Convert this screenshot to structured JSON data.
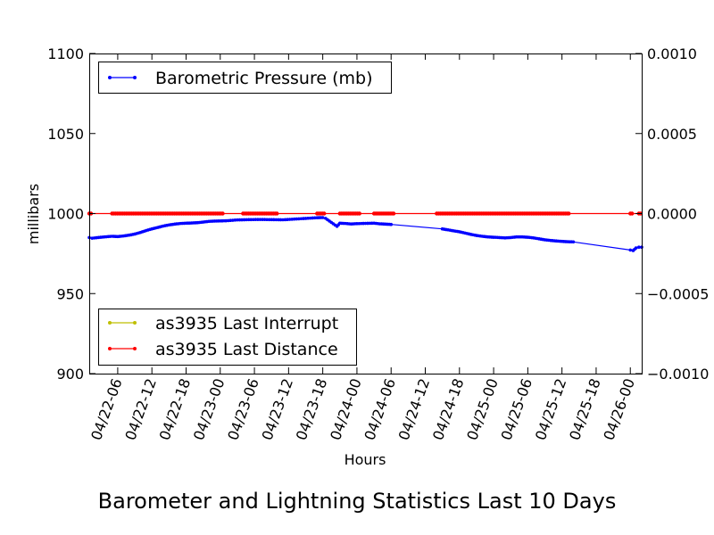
{
  "chart_data": {
    "type": "line",
    "title": "Barometer and Lightning Statistics Last 10 Days",
    "xlabel": "Hours",
    "ylabel": "millibars",
    "x_tick_labels": [
      "04/22-06",
      "04/22-12",
      "04/22-18",
      "04/23-00",
      "04/23-06",
      "04/23-12",
      "04/23-18",
      "04/24-00",
      "04/24-06",
      "04/24-12",
      "04/24-18",
      "04/25-00",
      "04/25-06",
      "04/25-12",
      "04/25-18",
      "04/26-00"
    ],
    "left_axis": {
      "ylim": [
        900,
        1100
      ],
      "ticks": [
        "900",
        "950",
        "1000",
        "1050",
        "1100"
      ]
    },
    "right_axis": {
      "ylim": [
        -0.001,
        0.001
      ],
      "ticks": [
        "−0.0010",
        "−0.0005",
        "0.0000",
        "0.0005",
        "0.0010"
      ]
    },
    "xlim": [
      "04/22-01:00",
      "04/26-02:00"
    ],
    "legend_upper": {
      "placement": "top-left",
      "entries": [
        "Barometric Pressure (mb)"
      ]
    },
    "legend_lower": {
      "placement": "bottom-left",
      "entries": [
        "as3935 Last Interrupt",
        "as3935 Last Distance"
      ]
    },
    "series": [
      {
        "name": "Barometric Pressure (mb)",
        "axis": "left",
        "color": "#0000ff",
        "points": [
          [
            "04/22-01:00",
            985.0
          ],
          [
            "04/22-01:30",
            984.6
          ],
          [
            "04/22-03:00",
            985.2
          ],
          [
            "04/22-04:00",
            985.5
          ],
          [
            "04/22-05:00",
            985.8
          ],
          [
            "04/22-06:00",
            985.6
          ],
          [
            "04/22-07:00",
            986.0
          ],
          [
            "04/22-08:00",
            986.5
          ],
          [
            "04/22-09:00",
            987.2
          ],
          [
            "04/22-10:00",
            988.2
          ],
          [
            "04/22-11:00",
            989.4
          ],
          [
            "04/22-12:00",
            990.4
          ],
          [
            "04/22-13:00",
            991.3
          ],
          [
            "04/22-14:00",
            992.2
          ],
          [
            "04/22-15:00",
            992.9
          ],
          [
            "04/22-16:00",
            993.4
          ],
          [
            "04/22-17:00",
            993.8
          ],
          [
            "04/22-18:00",
            994.0
          ],
          [
            "04/22-19:00",
            994.1
          ],
          [
            "04/22-20:00",
            994.3
          ],
          [
            "04/22-21:00",
            994.7
          ],
          [
            "04/22-22:00",
            995.1
          ],
          [
            "04/22-23:00",
            995.3
          ],
          [
            "04/23-00:00",
            995.4
          ],
          [
            "04/23-01:00",
            995.5
          ],
          [
            "04/23-03:00",
            996.0
          ],
          [
            "04/23-05:00",
            996.2
          ],
          [
            "04/23-07:00",
            996.3
          ],
          [
            "04/23-09:00",
            996.2
          ],
          [
            "04/23-11:00",
            996.1
          ],
          [
            "04/23-17:00",
            997.4
          ],
          [
            "04/23-18:00",
            997.5
          ],
          [
            "04/23-18:30",
            997.0
          ],
          [
            "04/23-20:30",
            992.0
          ],
          [
            "04/23-21:00",
            994.0
          ],
          [
            "04/23-22:00",
            993.8
          ],
          [
            "04/23-23:00",
            993.5
          ],
          [
            "04/24-00:00",
            993.7
          ],
          [
            "04/24-03:00",
            994.0
          ],
          [
            "04/24-04:00",
            993.6
          ],
          [
            "04/24-05:00",
            993.4
          ],
          [
            "04/24-06:00",
            993.2
          ],
          [
            "04/24-15:00",
            990.4
          ],
          [
            "04/24-16:00",
            989.8
          ],
          [
            "04/24-17:00",
            989.2
          ],
          [
            "04/24-18:00",
            988.6
          ],
          [
            "04/24-19:00",
            987.8
          ],
          [
            "04/24-20:00",
            987.0
          ],
          [
            "04/24-21:00",
            986.3
          ],
          [
            "04/24-22:00",
            985.8
          ],
          [
            "04/24-23:00",
            985.4
          ],
          [
            "04/25-00:00",
            985.2
          ],
          [
            "04/25-01:00",
            985.0
          ],
          [
            "04/25-02:00",
            984.8
          ],
          [
            "04/25-03:00",
            985.0
          ],
          [
            "04/25-04:00",
            985.4
          ],
          [
            "04/25-05:00",
            985.4
          ],
          [
            "04/25-06:00",
            985.2
          ],
          [
            "04/25-07:00",
            984.8
          ],
          [
            "04/25-08:00",
            984.2
          ],
          [
            "04/25-09:00",
            983.6
          ],
          [
            "04/25-10:00",
            983.2
          ],
          [
            "04/25-11:00",
            982.9
          ],
          [
            "04/25-12:00",
            982.6
          ],
          [
            "04/25-13:00",
            982.4
          ],
          [
            "04/25-14:00",
            982.3
          ],
          [
            "04/26-00:00",
            977.2
          ],
          [
            "04/26-00:30",
            976.9
          ],
          [
            "04/26-01:00",
            978.5
          ],
          [
            "04/26-01:30",
            979.0
          ],
          [
            "04/26-02:00",
            979.0
          ]
        ]
      },
      {
        "name": "as3935 Last Interrupt",
        "axis": "right",
        "color": "#bfbf00",
        "points": []
      },
      {
        "name": "as3935 Last Distance",
        "axis": "right",
        "color": "#ff0000",
        "value": 0.0,
        "range": [
          "04/22-01:00",
          "04/26-02:00"
        ],
        "marker_runs": [
          [
            "04/22-01:00",
            "04/22-01:30"
          ],
          [
            "04/22-05:00",
            "04/23-00:30"
          ],
          [
            "04/23-04:00",
            "04/23-10:00"
          ],
          [
            "04/23-17:00",
            "04/23-18:30"
          ],
          [
            "04/23-21:00",
            "04/24-00:30"
          ],
          [
            "04/24-03:00",
            "04/24-06:30"
          ],
          [
            "04/24-14:00",
            "04/25-13:30"
          ],
          [
            "04/26-00:00",
            "04/26-00:30"
          ],
          [
            "04/26-01:30",
            "04/26-02:00"
          ]
        ]
      }
    ]
  }
}
